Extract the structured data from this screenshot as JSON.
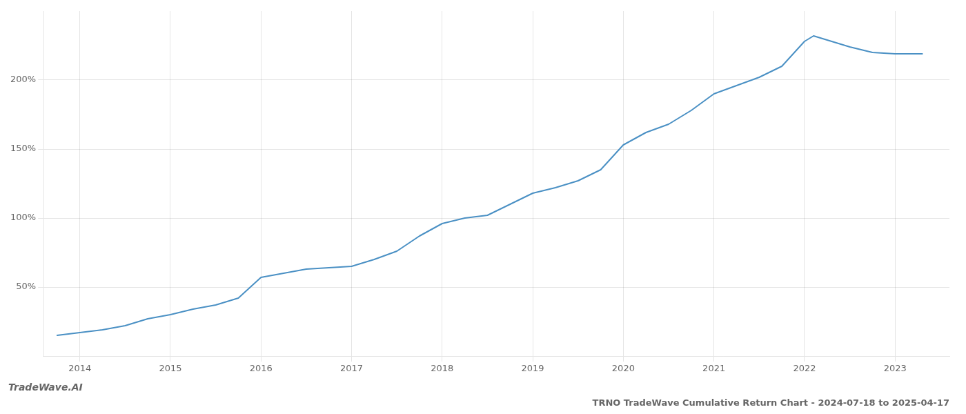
{
  "chart_data": {
    "type": "line",
    "title": "TRNO TradeWave Cumulative Return Chart - 2024-07-18 to 2025-04-17",
    "watermark": "TradeWave.AI",
    "x": [
      2013.75,
      2014.0,
      2014.25,
      2014.5,
      2014.75,
      2015.0,
      2015.25,
      2015.5,
      2015.75,
      2016.0,
      2016.25,
      2016.5,
      2016.75,
      2017.0,
      2017.25,
      2017.5,
      2017.75,
      2018.0,
      2018.25,
      2018.5,
      2018.75,
      2019.0,
      2019.25,
      2019.5,
      2019.75,
      2020.0,
      2020.25,
      2020.5,
      2020.75,
      2021.0,
      2021.25,
      2021.5,
      2021.75,
      2022.0,
      2022.1,
      2022.25,
      2022.5,
      2022.75,
      2023.0,
      2023.3
    ],
    "values": [
      15,
      17,
      19,
      22,
      27,
      30,
      34,
      37,
      42,
      57,
      60,
      63,
      64,
      65,
      70,
      76,
      87,
      96,
      100,
      102,
      110,
      118,
      122,
      127,
      135,
      153,
      162,
      168,
      178,
      190,
      196,
      202,
      210,
      228,
      232,
      229,
      224,
      220,
      219,
      219
    ],
    "color": "#4a90c4",
    "xlim": [
      2013.6,
      2023.6
    ],
    "xticks": [
      2014,
      2015,
      2016,
      2017,
      2018,
      2019,
      2020,
      2021,
      2022,
      2023
    ],
    "ylim": [
      0,
      250
    ],
    "yticks": [
      {
        "value": 50,
        "label": "50%"
      },
      {
        "value": 100,
        "label": "100%"
      },
      {
        "value": 150,
        "label": "150%"
      },
      {
        "value": 200,
        "label": "200%"
      }
    ],
    "grid": true
  }
}
